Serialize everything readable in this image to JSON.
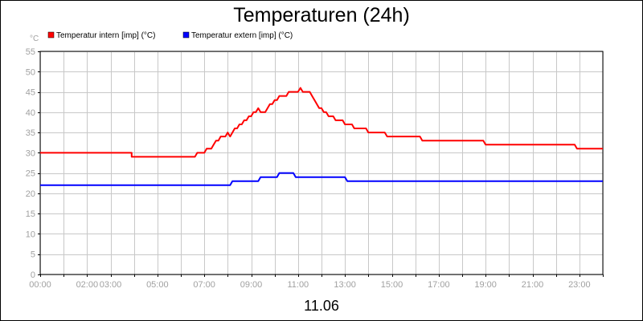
{
  "chart_data": {
    "type": "line",
    "title": "Temperaturen (24h)",
    "ylabel": "°C",
    "xlabel": "11.06",
    "ylim": [
      0,
      55
    ],
    "xlim": [
      0,
      24
    ],
    "yticks": [
      0,
      5,
      10,
      15,
      20,
      25,
      30,
      35,
      40,
      45,
      50,
      55
    ],
    "xticks": [
      {
        "t": 0,
        "label": "00:00"
      },
      {
        "t": 2,
        "label": "02:00"
      },
      {
        "t": 3,
        "label": "03:00"
      },
      {
        "t": 5,
        "label": "05:00"
      },
      {
        "t": 7,
        "label": "07:00"
      },
      {
        "t": 9,
        "label": "09:00"
      },
      {
        "t": 11,
        "label": "11:00"
      },
      {
        "t": 13,
        "label": "13:00"
      },
      {
        "t": 15,
        "label": "15:00"
      },
      {
        "t": 17,
        "label": "17:00"
      },
      {
        "t": 19,
        "label": "19:00"
      },
      {
        "t": 21,
        "label": "21:00"
      },
      {
        "t": 23,
        "label": "23:00"
      }
    ],
    "grid": true,
    "legend_position": "top-left",
    "series": [
      {
        "name": "Temperatur intern [imp] (°C)",
        "color": "#ff0000",
        "points": [
          [
            0,
            30
          ],
          [
            3.9,
            30
          ],
          [
            3.9,
            29
          ],
          [
            6.6,
            29
          ],
          [
            6.7,
            30
          ],
          [
            7.0,
            30
          ],
          [
            7.1,
            31
          ],
          [
            7.3,
            31
          ],
          [
            7.4,
            32
          ],
          [
            7.5,
            33
          ],
          [
            7.6,
            33
          ],
          [
            7.7,
            34
          ],
          [
            7.9,
            34
          ],
          [
            8.0,
            35
          ],
          [
            8.1,
            34
          ],
          [
            8.2,
            35
          ],
          [
            8.3,
            36
          ],
          [
            8.4,
            36
          ],
          [
            8.5,
            37
          ],
          [
            8.6,
            37
          ],
          [
            8.7,
            38
          ],
          [
            8.8,
            38
          ],
          [
            8.9,
            39
          ],
          [
            9.0,
            39
          ],
          [
            9.1,
            40
          ],
          [
            9.2,
            40
          ],
          [
            9.3,
            41
          ],
          [
            9.4,
            40
          ],
          [
            9.6,
            40
          ],
          [
            9.7,
            41
          ],
          [
            9.8,
            42
          ],
          [
            9.9,
            42
          ],
          [
            10.0,
            43
          ],
          [
            10.1,
            43
          ],
          [
            10.2,
            44
          ],
          [
            10.5,
            44
          ],
          [
            10.6,
            45
          ],
          [
            11.0,
            45
          ],
          [
            11.1,
            46
          ],
          [
            11.2,
            45
          ],
          [
            11.5,
            45
          ],
          [
            11.6,
            44
          ],
          [
            11.7,
            43
          ],
          [
            11.8,
            42
          ],
          [
            11.9,
            41
          ],
          [
            12.0,
            41
          ],
          [
            12.1,
            40
          ],
          [
            12.2,
            40
          ],
          [
            12.3,
            39
          ],
          [
            12.5,
            39
          ],
          [
            12.6,
            38
          ],
          [
            12.9,
            38
          ],
          [
            13.0,
            37
          ],
          [
            13.3,
            37
          ],
          [
            13.4,
            36
          ],
          [
            13.9,
            36
          ],
          [
            14.0,
            35
          ],
          [
            14.7,
            35
          ],
          [
            14.8,
            34
          ],
          [
            16.2,
            34
          ],
          [
            16.3,
            33
          ],
          [
            18.9,
            33
          ],
          [
            19.0,
            32
          ],
          [
            22.8,
            32
          ],
          [
            22.9,
            31
          ],
          [
            24.0,
            31
          ]
        ]
      },
      {
        "name": "Temperatur extern [imp] (°C)",
        "color": "#0000ff",
        "points": [
          [
            0,
            22
          ],
          [
            8.1,
            22
          ],
          [
            8.2,
            23
          ],
          [
            9.3,
            23
          ],
          [
            9.4,
            24
          ],
          [
            10.1,
            24
          ],
          [
            10.2,
            25
          ],
          [
            10.8,
            25
          ],
          [
            10.9,
            24
          ],
          [
            13.0,
            24
          ],
          [
            13.1,
            23
          ],
          [
            24.0,
            23
          ]
        ]
      }
    ]
  }
}
